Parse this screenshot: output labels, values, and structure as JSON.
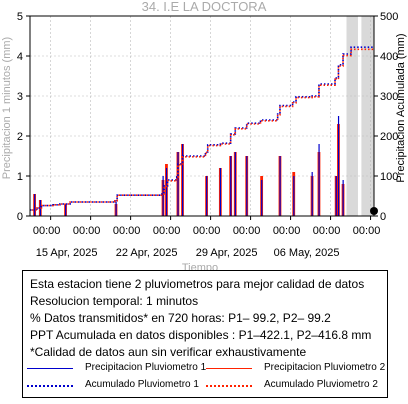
{
  "chart_data": {
    "type": "bar",
    "title": "34. I.E LA DOCTORA",
    "xlabel": "Tiempo",
    "ylabel": "Precipitacion 1 minutos (mm)",
    "y2label": "Precipitacion Acumulada (mm)",
    "ylim": [
      0,
      5
    ],
    "y2lim": [
      0,
      500
    ],
    "yticks": [
      "0",
      "1",
      "2",
      "3",
      "4",
      "5"
    ],
    "y2ticks": [
      "0",
      "100",
      "200",
      "300",
      "400",
      "500"
    ],
    "xlim": [
      0,
      30
    ],
    "xtick_times": [
      "00:00",
      "00:00",
      "00:00",
      "00:00",
      "00:00",
      "00:00",
      "00:00",
      "00:00",
      "00:00"
    ],
    "xtick_dates": [
      "15 Apr, 2025",
      "22 Apr, 2025",
      "29 Apr, 2025",
      "06 May, 2025"
    ],
    "grid": true,
    "colors": {
      "p1": "#0000cc",
      "p2": "#ff2200",
      "shade": "#d9d9d9",
      "grid": "#bbbbbb",
      "title": "#aaaaaa"
    },
    "shaded_ranges": [
      [
        27.6,
        28.6
      ],
      [
        28.9,
        30.0
      ]
    ],
    "series": [
      {
        "name": "Precipitacion Pluviometro 1",
        "x": [
          0.4,
          0.9,
          3.1,
          7.5,
          11.6,
          11.9,
          12.9,
          13.3,
          15.4,
          16.6,
          17.5,
          17.9,
          18.9,
          20.2,
          21.8,
          23.0,
          24.6,
          25.2,
          26.7,
          26.9,
          27.3
        ],
        "values": [
          0.55,
          0.4,
          0.3,
          0.35,
          1.0,
          1.2,
          1.6,
          1.8,
          1.0,
          1.2,
          1.5,
          1.6,
          1.5,
          0.9,
          1.5,
          1.0,
          1.1,
          1.8,
          1.0,
          2.5,
          0.9
        ]
      },
      {
        "name": "Precipitacion Pluviometro 2",
        "x": [
          0.4,
          0.9,
          3.1,
          7.5,
          11.6,
          11.9,
          12.9,
          13.3,
          15.4,
          16.6,
          17.5,
          17.9,
          18.9,
          20.2,
          21.8,
          23.0,
          24.6,
          25.2,
          26.7,
          26.9,
          27.3
        ],
        "values": [
          0.55,
          0.4,
          0.3,
          0.3,
          0.9,
          1.3,
          1.6,
          1.8,
          1.0,
          1.2,
          1.5,
          1.6,
          1.5,
          1.0,
          1.5,
          1.1,
          1.0,
          1.6,
          1.0,
          2.3,
          0.8
        ]
      },
      {
        "name": "Acumulado Pluviometro 1",
        "axis": "right",
        "x": [
          0,
          0.6,
          1.0,
          2.0,
          2.6,
          3.5,
          7.4,
          7.6,
          11.5,
          11.7,
          12.0,
          12.8,
          12.9,
          13.3,
          15.3,
          15.5,
          16.6,
          17.5,
          17.9,
          18.9,
          20.1,
          21.6,
          21.8,
          22.9,
          23.2,
          24.6,
          25.2,
          26.6,
          26.9,
          27.3,
          28.0,
          30.0
        ],
        "values": [
          15,
          20,
          26,
          28,
          30,
          35,
          38,
          52,
          55,
          75,
          90,
          98,
          130,
          150,
          160,
          178,
          182,
          205,
          220,
          232,
          240,
          255,
          276,
          285,
          298,
          300,
          330,
          345,
          378,
          405,
          422.1,
          422.1
        ]
      },
      {
        "name": "Acumulado Pluviometro 2",
        "axis": "right",
        "x": [
          0,
          0.6,
          1.0,
          2.0,
          2.6,
          3.5,
          7.4,
          7.6,
          11.5,
          11.7,
          12.0,
          12.8,
          12.9,
          13.3,
          15.3,
          15.5,
          16.6,
          17.5,
          17.9,
          18.9,
          20.1,
          21.6,
          21.8,
          22.9,
          23.2,
          24.6,
          25.2,
          26.6,
          26.9,
          27.3,
          28.0,
          30.0
        ],
        "values": [
          15,
          20,
          26,
          28,
          30,
          35,
          38,
          52,
          55,
          74,
          88,
          97,
          128,
          148,
          158,
          176,
          180,
          203,
          218,
          230,
          238,
          253,
          274,
          283,
          296,
          298,
          327,
          342,
          375,
          401,
          416.8,
          416.8
        ]
      }
    ]
  },
  "info": {
    "line1": "Esta estacion tiene 2 pluviometros para mejor calidad de datos",
    "line2": "Resolucion temporal: 1 minutos",
    "line3": "% Datos transmitidos* en 720 horas: P1– 99.2, P2– 99.2",
    "line4": "PPT Acumulada en datos disponibles : P1–422.1, P2–416.8 mm",
    "line5": "*Calidad de datos aun sin verificar exhaustivamente"
  },
  "legend": {
    "p1_bars": "Precipitacion Pluviometro 1",
    "p2_bars": "Precipitacion Pluviometro 2",
    "p1_acc": "Acumulado Pluviometro 1",
    "p2_acc": "Acumulado Pluviometro 2"
  }
}
